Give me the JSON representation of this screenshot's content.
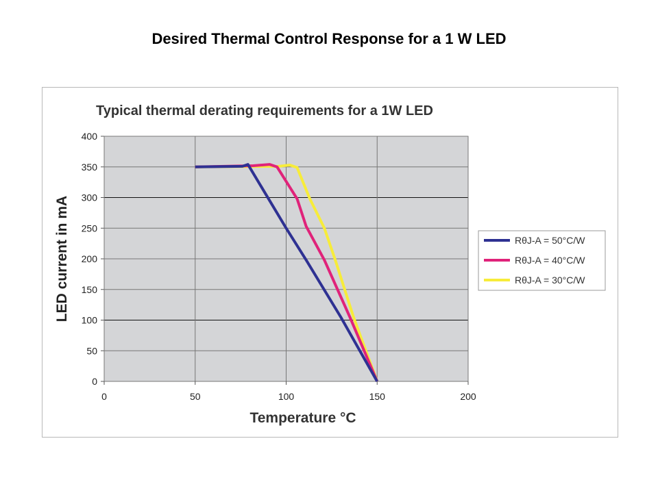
{
  "slide_title": "Desired Thermal Control Response for a 1 W LED",
  "chart_data": {
    "type": "line",
    "title": "Typical thermal derating requirements for a 1W LED",
    "xlabel": "Temperature °C",
    "ylabel": "LED current in mA",
    "xlim": [
      0,
      200
    ],
    "ylim": [
      0,
      400
    ],
    "xticks": [
      0,
      50,
      100,
      150,
      200
    ],
    "yticks": [
      0,
      50,
      100,
      150,
      200,
      250,
      300,
      350,
      400
    ],
    "grid": true,
    "plot_background": "#d4d5d7",
    "legend_position": "right",
    "series": [
      {
        "name": "RθJ-A = 50°C/W",
        "color": "#2e3192",
        "points": [
          [
            50,
            350
          ],
          [
            76,
            351
          ],
          [
            79,
            354
          ],
          [
            100,
            250
          ],
          [
            111,
            198
          ],
          [
            130,
            105
          ],
          [
            150,
            0
          ]
        ]
      },
      {
        "name": "RθJ-A = 40°C/W",
        "color": "#e0237a",
        "points": [
          [
            50,
            350
          ],
          [
            82,
            352
          ],
          [
            91,
            354
          ],
          [
            95,
            350
          ],
          [
            106,
            298
          ],
          [
            111,
            253
          ],
          [
            121,
            198
          ],
          [
            135,
            105
          ],
          [
            150,
            0
          ]
        ]
      },
      {
        "name": "RθJ-A = 30°C/W",
        "color": "#f7ec3a",
        "points": [
          [
            50,
            350
          ],
          [
            96,
            351
          ],
          [
            102,
            353
          ],
          [
            106,
            349
          ],
          [
            113,
            298
          ],
          [
            121,
            250
          ],
          [
            127,
            198
          ],
          [
            137,
            105
          ],
          [
            150,
            0
          ]
        ]
      }
    ]
  }
}
